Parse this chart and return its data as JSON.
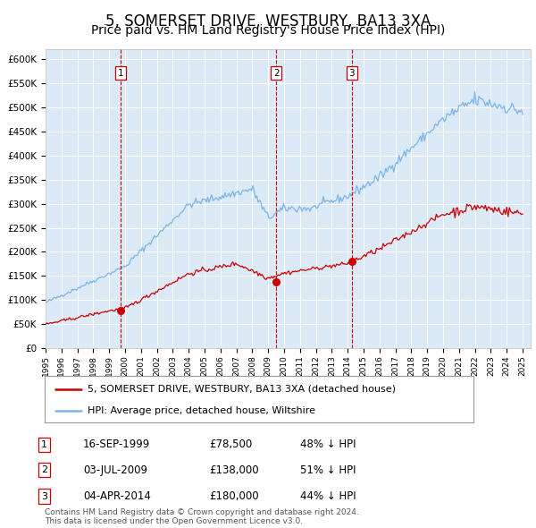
{
  "title": "5, SOMERSET DRIVE, WESTBURY, BA13 3XA",
  "subtitle": "Price paid vs. HM Land Registry's House Price Index (HPI)",
  "title_fontsize": 12,
  "subtitle_fontsize": 10,
  "xlim": [
    1995.0,
    2025.5
  ],
  "ylim": [
    0,
    620000
  ],
  "yticks": [
    0,
    50000,
    100000,
    150000,
    200000,
    250000,
    300000,
    350000,
    400000,
    450000,
    500000,
    550000,
    600000
  ],
  "ytick_labels": [
    "£0",
    "£50K",
    "£100K",
    "£150K",
    "£200K",
    "£250K",
    "£300K",
    "£350K",
    "£400K",
    "£450K",
    "£500K",
    "£550K",
    "£600K"
  ],
  "plot_bg_color": "#dce9f7",
  "grid_color": "#ffffff",
  "hpi_color": "#7ab4e8",
  "price_color": "#cc0000",
  "vline_color": "#cc0000",
  "sale_marker_color": "#cc0000",
  "sale_points": [
    {
      "year": 1999.71,
      "price": 78500,
      "label": "1"
    },
    {
      "year": 2009.5,
      "price": 138000,
      "label": "2"
    },
    {
      "year": 2014.25,
      "price": 180000,
      "label": "3"
    }
  ],
  "legend_price_label": "5, SOMERSET DRIVE, WESTBURY, BA13 3XA (detached house)",
  "legend_hpi_label": "HPI: Average price, detached house, Wiltshire",
  "table_data": [
    [
      "1",
      "16-SEP-1999",
      "£78,500",
      "48% ↓ HPI"
    ],
    [
      "2",
      "03-JUL-2009",
      "£138,000",
      "51% ↓ HPI"
    ],
    [
      "3",
      "04-APR-2014",
      "£180,000",
      "44% ↓ HPI"
    ]
  ],
  "footnote": "Contains HM Land Registry data © Crown copyright and database right 2024.\nThis data is licensed under the Open Government Licence v3.0.",
  "xtick_years": [
    1995,
    1996,
    1997,
    1998,
    1999,
    2000,
    2001,
    2002,
    2003,
    2004,
    2005,
    2006,
    2007,
    2008,
    2009,
    2010,
    2011,
    2012,
    2013,
    2014,
    2015,
    2016,
    2017,
    2018,
    2019,
    2020,
    2021,
    2022,
    2023,
    2024,
    2025
  ]
}
